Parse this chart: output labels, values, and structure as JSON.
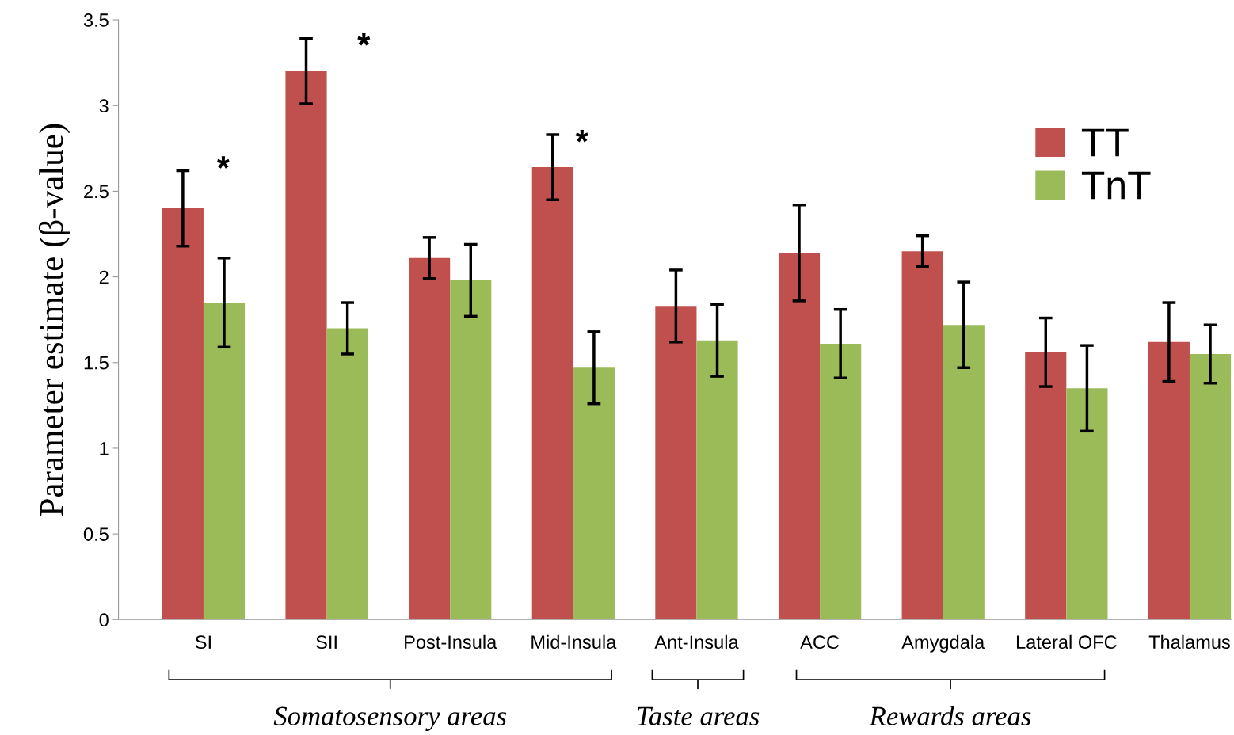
{
  "chart_data": {
    "type": "bar",
    "ylabel": "Parameter estimate (β-value)",
    "categories": [
      "SI",
      "SII",
      "Post-Insula",
      "Mid-Insula",
      "Ant-Insula",
      "ACC",
      "Amygdala",
      "Lateral OFC",
      "Thalamus"
    ],
    "series": [
      {
        "name": "TT",
        "color": "#c0504d",
        "values": [
          2.4,
          3.2,
          2.11,
          2.64,
          1.83,
          2.14,
          2.15,
          1.56,
          1.62
        ],
        "errors": [
          0.22,
          0.19,
          0.12,
          0.19,
          0.21,
          0.28,
          0.09,
          0.2,
          0.23
        ]
      },
      {
        "name": "TnT",
        "color": "#9bbb59",
        "values": [
          1.85,
          1.7,
          1.98,
          1.47,
          1.63,
          1.61,
          1.72,
          1.35,
          1.55
        ],
        "errors": [
          0.26,
          0.15,
          0.21,
          0.21,
          0.21,
          0.2,
          0.25,
          0.25,
          0.17
        ]
      }
    ],
    "ylim": [
      0,
      3.5
    ],
    "yticks": [
      0,
      0.5,
      1,
      1.5,
      2,
      2.5,
      3,
      3.5
    ],
    "grid": false,
    "legend": "top right",
    "annotations": [
      "Somatosensory areas",
      "Taste areas",
      "Rewards areas",
      "*",
      "*",
      "*"
    ]
  }
}
